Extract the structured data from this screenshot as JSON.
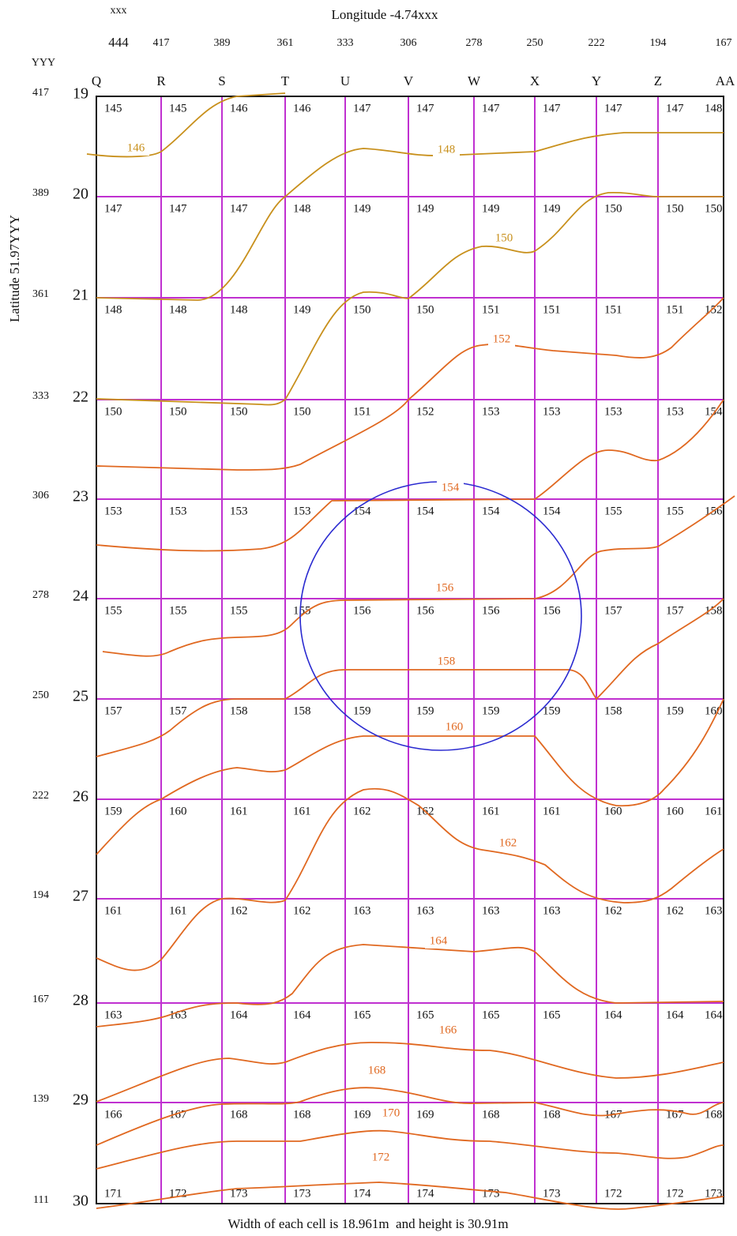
{
  "header": {
    "x_label": "xxx",
    "title": "Longitude -4.74xxx",
    "y_label": "YYY",
    "side_label": "Latitude 51.97YYY"
  },
  "columns": [
    {
      "letter": "Q",
      "longitude": 444
    },
    {
      "letter": "R",
      "longitude": 417
    },
    {
      "letter": "S",
      "longitude": 389
    },
    {
      "letter": "T",
      "longitude": 361
    },
    {
      "letter": "U",
      "longitude": 333
    },
    {
      "letter": "V",
      "longitude": 306
    },
    {
      "letter": "W",
      "longitude": 278
    },
    {
      "letter": "X",
      "longitude": 250
    },
    {
      "letter": "Y",
      "longitude": 222
    },
    {
      "letter": "Z",
      "longitude": 194
    },
    {
      "letter": "AA",
      "longitude": 167
    }
  ],
  "rows": [
    {
      "number": 19,
      "latitude": 417,
      "cells": [
        145,
        145,
        146,
        146,
        147,
        147,
        147,
        147,
        147,
        147,
        148
      ]
    },
    {
      "number": 20,
      "latitude": 389,
      "cells": [
        147,
        147,
        147,
        148,
        149,
        149,
        149,
        149,
        150,
        150,
        150
      ]
    },
    {
      "number": 21,
      "latitude": 361,
      "cells": [
        148,
        148,
        148,
        149,
        150,
        150,
        151,
        151,
        151,
        151,
        152
      ]
    },
    {
      "number": 22,
      "latitude": 333,
      "cells": [
        150,
        150,
        150,
        150,
        151,
        152,
        153,
        153,
        153,
        153,
        154
      ]
    },
    {
      "number": 23,
      "latitude": 306,
      "cells": [
        153,
        153,
        153,
        153,
        154,
        154,
        154,
        154,
        155,
        155,
        156
      ]
    },
    {
      "number": 24,
      "latitude": 278,
      "cells": [
        155,
        155,
        155,
        155,
        156,
        156,
        156,
        156,
        157,
        157,
        158
      ]
    },
    {
      "number": 25,
      "latitude": 250,
      "cells": [
        157,
        157,
        158,
        158,
        159,
        159,
        159,
        159,
        158,
        159,
        160
      ]
    },
    {
      "number": 26,
      "latitude": 222,
      "cells": [
        159,
        160,
        161,
        161,
        162,
        162,
        161,
        161,
        160,
        160,
        161
      ]
    },
    {
      "number": 27,
      "latitude": 194,
      "cells": [
        161,
        161,
        162,
        162,
        163,
        163,
        163,
        163,
        162,
        162,
        163
      ]
    },
    {
      "number": 28,
      "latitude": 167,
      "cells": [
        163,
        163,
        164,
        164,
        165,
        165,
        165,
        165,
        164,
        164,
        164
      ]
    },
    {
      "number": 29,
      "latitude": 139,
      "cells": [
        166,
        167,
        168,
        168,
        169,
        169,
        168,
        168,
        167,
        167,
        168
      ]
    },
    {
      "number": 30,
      "latitude": 111,
      "cells": [
        171,
        172,
        173,
        173,
        174,
        174,
        173,
        173,
        172,
        172,
        173
      ]
    }
  ],
  "contours": [
    {
      "label": 146,
      "color": "#c8901c"
    },
    {
      "label": 148,
      "color": "#c8901c"
    },
    {
      "label": 150,
      "color": "#c8901c"
    },
    {
      "label": 152,
      "color": "#e06820"
    },
    {
      "label": 154,
      "color": "#e06820"
    },
    {
      "label": 156,
      "color": "#e06820"
    },
    {
      "label": 158,
      "color": "#e06820"
    },
    {
      "label": 160,
      "color": "#e06820"
    },
    {
      "label": 162,
      "color": "#e06820"
    },
    {
      "label": 164,
      "color": "#e06820"
    },
    {
      "label": 166,
      "color": "#e06820"
    },
    {
      "label": 168,
      "color": "#e06820"
    },
    {
      "label": 170,
      "color": "#e06820"
    },
    {
      "label": 172,
      "color": "#e06820"
    }
  ],
  "footer": "Width of each cell is 18.961m  and height is 30.91m"
}
